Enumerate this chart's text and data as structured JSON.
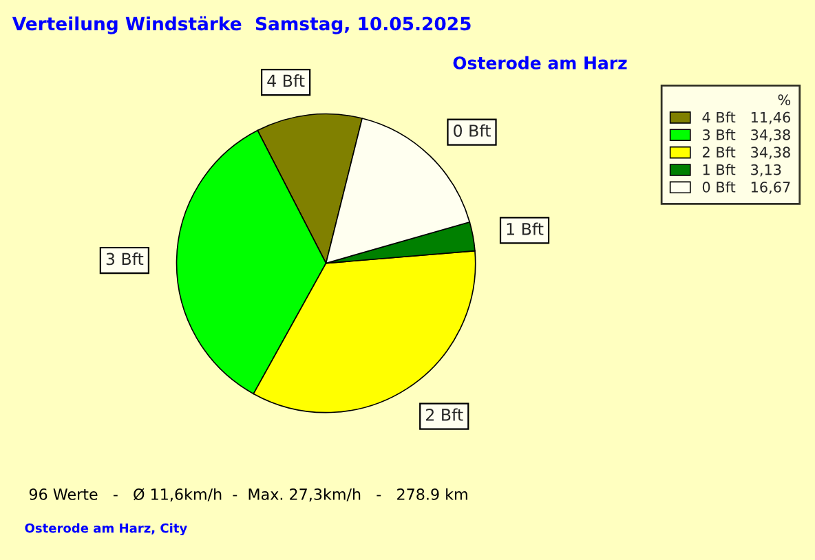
{
  "chart_data": {
    "type": "pie",
    "title": "Verteilung Windstärke  Samstag, 10.05.2025",
    "subtitle": "Osterode am Harz",
    "categories": [
      "4 Bft",
      "3 Bft",
      "2 Bft",
      "1 Bft",
      "0 Bft"
    ],
    "values": [
      11.46,
      34.38,
      34.38,
      3.13,
      16.67
    ],
    "value_labels": [
      "11,46",
      "34,38",
      "34,38",
      "3,13",
      "16,67"
    ],
    "colors": [
      "#808000",
      "#00ff00",
      "#ffff00",
      "#008000",
      "#fffff0"
    ],
    "legend": "top right",
    "legend_title": "%",
    "annotations": [
      "96 Werte   -   Ø 11,6km/h  -  Max. 27,3km/h   -   278.9 km",
      "Osterode am Harz, City"
    ]
  }
}
